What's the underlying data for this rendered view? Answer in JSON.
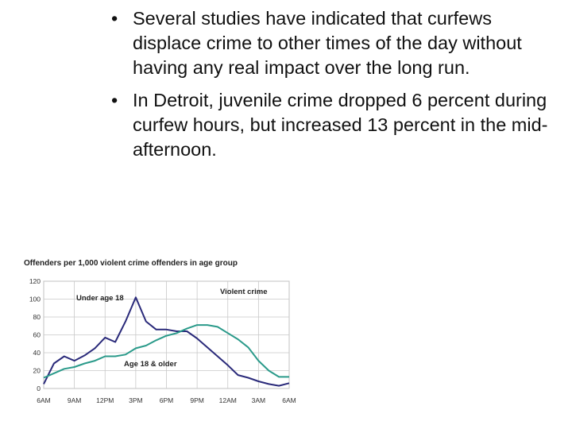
{
  "bullets": [
    "Several studies have indicated that curfews displace crime to other times of the day without having any real impact over the long run.",
    "In Detroit, juvenile crime dropped 6 percent during curfew hours, but increased 13 percent in the mid-afternoon."
  ],
  "chart_data": {
    "type": "line",
    "title": "Offenders per 1,000 violent crime offenders in age group",
    "annotation": "Violent crime",
    "x_ticks": [
      "6AM",
      "9AM",
      "12PM",
      "3PM",
      "6PM",
      "9PM",
      "12AM",
      "3AM",
      "6AM"
    ],
    "y_ticks": [
      0,
      20,
      40,
      60,
      80,
      100,
      120
    ],
    "ylim": [
      0,
      120
    ],
    "grid": true,
    "colors": {
      "under18": "#2a2a7a",
      "over18": "#2a9a8a",
      "grid": "#c8c8c8"
    },
    "series": [
      {
        "name": "Under age 18",
        "x": [
          "6AM",
          "7AM",
          "8AM",
          "9AM",
          "10AM",
          "11AM",
          "12PM",
          "1PM",
          "2PM",
          "3PM",
          "4PM",
          "5PM",
          "6PM",
          "7PM",
          "8PM",
          "9PM",
          "10PM",
          "11PM",
          "12AM",
          "1AM",
          "2AM",
          "3AM",
          "4AM",
          "5AM",
          "6AM"
        ],
        "values": [
          5,
          28,
          36,
          31,
          37,
          45,
          57,
          52,
          75,
          102,
          75,
          66,
          66,
          64,
          64,
          56,
          46,
          36,
          26,
          15,
          12,
          8,
          5,
          3,
          6
        ]
      },
      {
        "name": "Age 18 & older",
        "x": [
          "6AM",
          "7AM",
          "8AM",
          "9AM",
          "10AM",
          "11AM",
          "12PM",
          "1PM",
          "2PM",
          "3PM",
          "4PM",
          "5PM",
          "6PM",
          "7PM",
          "8PM",
          "9PM",
          "10PM",
          "11PM",
          "12AM",
          "1AM",
          "2AM",
          "3AM",
          "4AM",
          "5AM",
          "6AM"
        ],
        "values": [
          12,
          17,
          22,
          24,
          28,
          31,
          36,
          36,
          38,
          45,
          48,
          54,
          59,
          62,
          67,
          71,
          71,
          69,
          62,
          55,
          46,
          31,
          20,
          13,
          13
        ]
      }
    ]
  }
}
